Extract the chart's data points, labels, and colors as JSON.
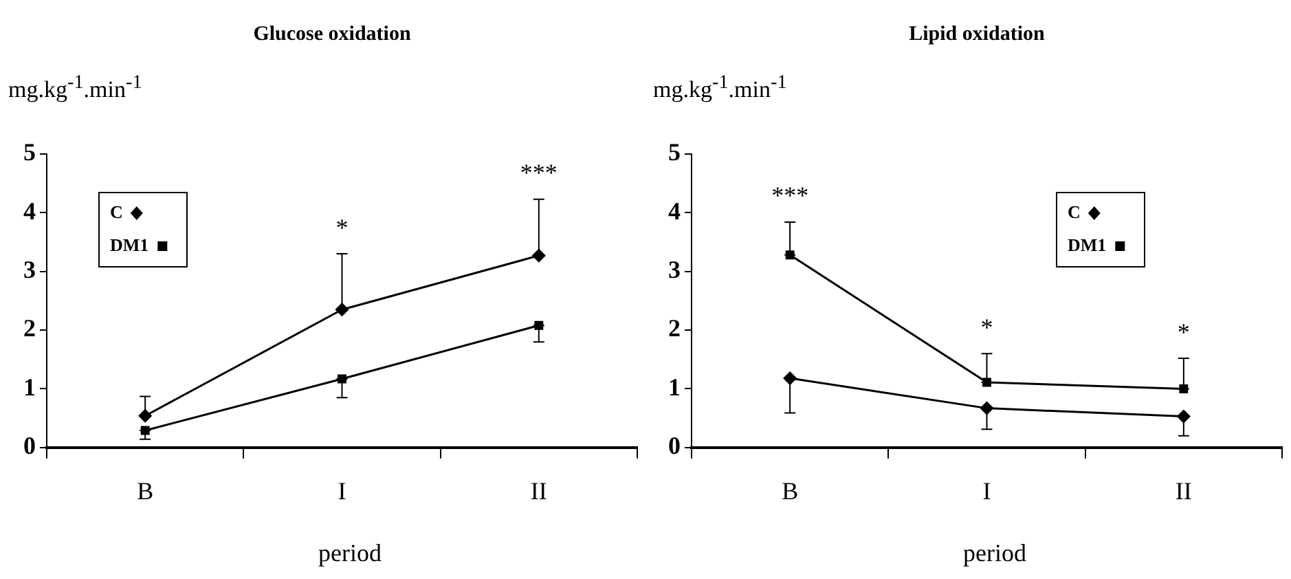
{
  "chart_data": [
    {
      "type": "line",
      "title": "Glucose oxidation",
      "xlabel": "period",
      "ylabel": "mg.kg$^{-1}$.min$^{-1}$",
      "categories": [
        "B",
        "I",
        "II"
      ],
      "series": [
        {
          "name": "C",
          "color": "#000000",
          "marker": "diamond",
          "values": [
            0.54,
            2.35,
            3.27
          ],
          "errors": [
            [
              0.54,
              0.87
            ],
            [
              2.35,
              3.3
            ],
            [
              3.27,
              4.23
            ]
          ]
        },
        {
          "name": "DM1",
          "color": "#000000",
          "marker": "square",
          "values": [
            0.29,
            1.17,
            2.08
          ],
          "errors": [
            [
              0.14,
              0.29
            ],
            [
              0.85,
              1.17
            ],
            [
              1.8,
              2.08
            ]
          ]
        }
      ],
      "ylim": [
        0,
        5
      ],
      "yticks": [
        0,
        1,
        2,
        3,
        4,
        5
      ],
      "grid": false,
      "legend": "top left",
      "annotations": [
        {
          "text": "*",
          "x": "I",
          "y": 3.3
        },
        {
          "text": "***",
          "x": "II",
          "y": 4.23
        }
      ]
    },
    {
      "type": "line",
      "title": "Lipid oxidation",
      "xlabel": "period",
      "ylabel": "mg.kg$^{-1}$.min$^{-1}$",
      "categories": [
        "B",
        "I",
        "II"
      ],
      "series": [
        {
          "name": "C",
          "color": "#000000",
          "marker": "diamond",
          "values": [
            1.18,
            0.67,
            0.53
          ],
          "errors": [
            [
              0.59,
              1.18
            ],
            [
              0.31,
              0.67
            ],
            [
              0.2,
              0.53
            ]
          ]
        },
        {
          "name": "DM1",
          "color": "#000000",
          "marker": "square",
          "values": [
            3.28,
            1.11,
            1.0
          ],
          "errors": [
            [
              3.28,
              3.84
            ],
            [
              1.11,
              1.6
            ],
            [
              1.0,
              1.52
            ]
          ]
        }
      ],
      "ylim": [
        0,
        5
      ],
      "yticks": [
        0,
        1,
        2,
        3,
        4,
        5
      ],
      "grid": false,
      "legend": "top right",
      "annotations": [
        {
          "text": "***",
          "x": "B",
          "y": 3.84
        },
        {
          "text": "*",
          "x": "I",
          "y": 1.6
        },
        {
          "text": "*",
          "x": "II",
          "y": 1.52
        }
      ]
    }
  ]
}
